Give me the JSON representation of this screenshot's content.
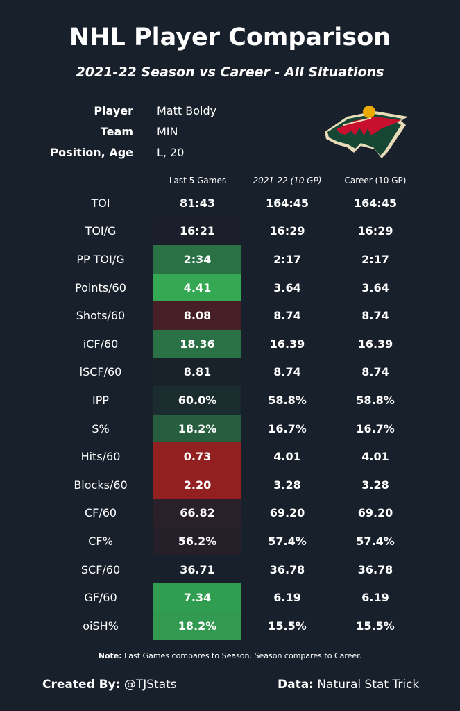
{
  "title": "NHL Player Comparison",
  "subtitle": "2021-22 Season vs Career - All Situations",
  "info": {
    "player_label": "Player",
    "player": "Matt Boldy",
    "team_label": "Team",
    "team": "MIN",
    "pos_label": "Position, Age",
    "pos": "L, 20"
  },
  "logo": "Minnesota Wild logo",
  "colors": {
    "background": "#18202b",
    "strong_green": "#35a853",
    "green": "#2a7245",
    "red": "#922020"
  },
  "chart_data": {
    "type": "table",
    "columns": [
      "",
      "Last 5 Games",
      "2021-22 (10 GP)",
      "Career (10 GP)"
    ],
    "rows": [
      {
        "stat": "TOI",
        "last5": "81:43",
        "season": "164:45",
        "career": "164:45",
        "color": ""
      },
      {
        "stat": "TOI/G",
        "last5": "16:21",
        "season": "16:29",
        "career": "16:29",
        "color": "#1c1f2b"
      },
      {
        "stat": "PP TOI/G",
        "last5": "2:34",
        "season": "2:17",
        "career": "2:17",
        "color": "#2a7245"
      },
      {
        "stat": "Points/60",
        "last5": "4.41",
        "season": "3.64",
        "career": "3.64",
        "color": "#35a853"
      },
      {
        "stat": "Shots/60",
        "last5": "8.08",
        "season": "8.74",
        "career": "8.74",
        "color": "#461f27"
      },
      {
        "stat": "iCF/60",
        "last5": "18.36",
        "season": "16.39",
        "career": "16.39",
        "color": "#2a7245"
      },
      {
        "stat": "iSCF/60",
        "last5": "8.81",
        "season": "8.74",
        "career": "8.74",
        "color": "#192129"
      },
      {
        "stat": "IPP",
        "last5": "60.0%",
        "season": "58.8%",
        "career": "58.8%",
        "color": "#1b2c2e"
      },
      {
        "stat": "S%",
        "last5": "18.2%",
        "season": "16.7%",
        "career": "16.7%",
        "color": "#275e3e"
      },
      {
        "stat": "Hits/60",
        "last5": "0.73",
        "season": "4.01",
        "career": "4.01",
        "color": "#922020"
      },
      {
        "stat": "Blocks/60",
        "last5": "2.20",
        "season": "3.28",
        "career": "3.28",
        "color": "#922020"
      },
      {
        "stat": "CF/60",
        "last5": "66.82",
        "season": "69.20",
        "career": "69.20",
        "color": "#2a2029"
      },
      {
        "stat": "CF%",
        "last5": "56.2%",
        "season": "57.4%",
        "career": "57.4%",
        "color": "#251f2a"
      },
      {
        "stat": "SCF/60",
        "last5": "36.71",
        "season": "36.78",
        "career": "36.78",
        "color": ""
      },
      {
        "stat": "GF/60",
        "last5": "7.34",
        "season": "6.19",
        "career": "6.19",
        "color": "#319d50"
      },
      {
        "stat": "oiSH%",
        "last5": "18.2%",
        "season": "15.5%",
        "career": "15.5%",
        "color": "#319a50"
      }
    ]
  },
  "note": {
    "label": "Note:",
    "text": " Last Games compares to Season. Season compares to Career."
  },
  "footer": {
    "created_label": "Created By:",
    "created": " @TJStats",
    "data_label": "Data:",
    "data": " Natural Stat Trick"
  }
}
